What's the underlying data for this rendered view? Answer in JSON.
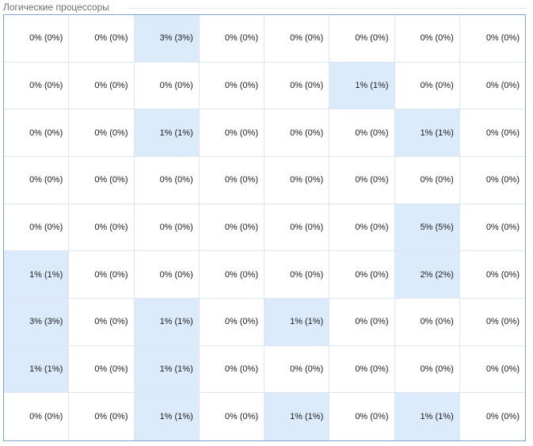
{
  "section": {
    "title": "Логические процессоры"
  },
  "colors": {
    "grid_border": "#7da2ce",
    "active_fill": "#dcebfc",
    "line": "#dde5ee"
  },
  "processors": [
    [
      "0% (0%)",
      "0% (0%)",
      "3% (3%)",
      "0% (0%)",
      "0% (0%)",
      "0% (0%)",
      "0% (0%)",
      "0% (0%)"
    ],
    [
      "0% (0%)",
      "0% (0%)",
      "0% (0%)",
      "0% (0%)",
      "0% (0%)",
      "1% (1%)",
      "0% (0%)",
      "0% (0%)"
    ],
    [
      "0% (0%)",
      "0% (0%)",
      "1% (1%)",
      "0% (0%)",
      "0% (0%)",
      "0% (0%)",
      "1% (1%)",
      "0% (0%)"
    ],
    [
      "0% (0%)",
      "0% (0%)",
      "0% (0%)",
      "0% (0%)",
      "0% (0%)",
      "0% (0%)",
      "0% (0%)",
      "0% (0%)"
    ],
    [
      "0% (0%)",
      "0% (0%)",
      "0% (0%)",
      "0% (0%)",
      "0% (0%)",
      "0% (0%)",
      "5% (5%)",
      "0% (0%)"
    ],
    [
      "1% (1%)",
      "0% (0%)",
      "0% (0%)",
      "0% (0%)",
      "0% (0%)",
      "0% (0%)",
      "2% (2%)",
      "0% (0%)"
    ],
    [
      "3% (3%)",
      "0% (0%)",
      "1% (1%)",
      "0% (0%)",
      "1% (1%)",
      "0% (0%)",
      "0% (0%)",
      "0% (0%)"
    ],
    [
      "1% (1%)",
      "0% (0%)",
      "1% (1%)",
      "0% (0%)",
      "0% (0%)",
      "0% (0%)",
      "0% (0%)",
      "0% (0%)"
    ],
    [
      "0% (0%)",
      "0% (0%)",
      "1% (1%)",
      "0% (0%)",
      "1% (1%)",
      "0% (0%)",
      "1% (1%)",
      "0% (0%)"
    ]
  ]
}
